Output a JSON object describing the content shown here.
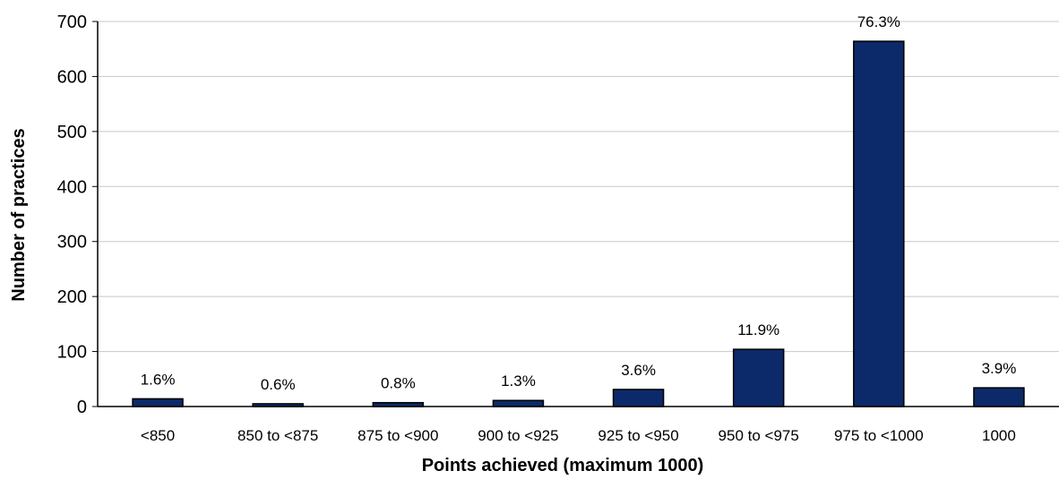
{
  "chart_data": {
    "type": "bar",
    "title": "",
    "xlabel": "Points achieved (maximum 1000)",
    "ylabel": "Number of practices",
    "ylim": [
      0,
      700
    ],
    "yticks": [
      0,
      100,
      200,
      300,
      400,
      500,
      600,
      700
    ],
    "grid": true,
    "categories": [
      "<850",
      "850 to <875",
      "875 to <900",
      "900 to <925",
      "925 to <950",
      "950 to <975",
      "975 to <1000",
      "1000"
    ],
    "values": [
      14,
      5,
      7,
      11,
      31,
      104,
      664,
      34
    ],
    "data_labels": [
      "1.6%",
      "0.6%",
      "0.8%",
      "1.3%",
      "3.6%",
      "11.9%",
      "76.3%",
      "3.9%"
    ],
    "colors": {
      "bar": "#0c2a69",
      "bar_edge": "#000000",
      "grid": "#c8c8c8",
      "axis": "#000000"
    }
  }
}
